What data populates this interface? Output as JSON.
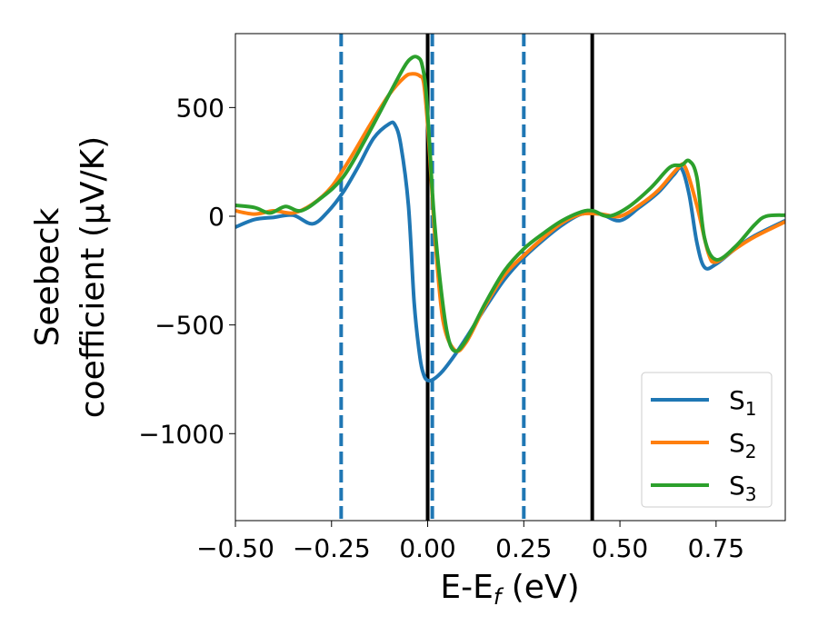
{
  "chart_data": {
    "type": "line",
    "xlabel": "E-E",
    "xlabel_sub": "f",
    "xlabel_unit": " (eV)",
    "ylabel_line1": "Seebeck",
    "ylabel_line2": "coefficient  (μV/K)",
    "xlim": [
      -0.5,
      0.93
    ],
    "ylim": [
      -1400,
      840
    ],
    "x_ticks": [
      -0.5,
      -0.25,
      0.0,
      0.25,
      0.5,
      0.75
    ],
    "x_tick_labels": [
      "−0.50",
      "−0.25",
      "0.00",
      "0.25",
      "0.50",
      "0.75"
    ],
    "y_ticks": [
      500,
      0,
      -500,
      -1000
    ],
    "y_tick_labels": [
      "500",
      "0",
      "−500",
      "−1000"
    ],
    "grid": false,
    "legend_position": "bottom-right",
    "vertical_lines": [
      {
        "x": -0.225,
        "style": "dashed",
        "color": "#1f77b4"
      },
      {
        "x": 0.012,
        "style": "dashed",
        "color": "#1f77b4"
      },
      {
        "x": 0.25,
        "style": "dashed",
        "color": "#1f77b4"
      },
      {
        "x": 0.0,
        "style": "solid",
        "color": "#000000"
      },
      {
        "x": 0.428,
        "style": "solid",
        "color": "#000000"
      }
    ],
    "series": [
      {
        "name": "S",
        "sub": "1",
        "color": "#1f77b4",
        "x": [
          -0.5,
          -0.45,
          -0.4,
          -0.35,
          -0.3,
          -0.26,
          -0.22,
          -0.18,
          -0.14,
          -0.1,
          -0.085,
          -0.07,
          -0.05,
          -0.035,
          -0.02,
          -0.01,
          0.0,
          0.015,
          0.04,
          0.07,
          0.1,
          0.15,
          0.2,
          0.25,
          0.3,
          0.35,
          0.4,
          0.45,
          0.5,
          0.55,
          0.6,
          0.64,
          0.66,
          0.68,
          0.7,
          0.72,
          0.75,
          0.8,
          0.85,
          0.93
        ],
        "y": [
          -50,
          -15,
          -5,
          5,
          -35,
          20,
          110,
          230,
          360,
          425,
          420,
          330,
          50,
          -400,
          -650,
          -730,
          -755,
          -750,
          -710,
          -640,
          -560,
          -420,
          -290,
          -190,
          -110,
          -40,
          10,
          10,
          -20,
          40,
          110,
          190,
          220,
          100,
          -120,
          -235,
          -220,
          -150,
          -90,
          -20
        ]
      },
      {
        "name": "S",
        "sub": "2",
        "color": "#ff7f0e",
        "x": [
          -0.5,
          -0.45,
          -0.4,
          -0.35,
          -0.3,
          -0.25,
          -0.2,
          -0.15,
          -0.1,
          -0.06,
          -0.04,
          -0.02,
          -0.01,
          0.0,
          0.01,
          0.02,
          0.04,
          0.07,
          0.1,
          0.15,
          0.2,
          0.25,
          0.3,
          0.35,
          0.4,
          0.45,
          0.5,
          0.55,
          0.6,
          0.65,
          0.67,
          0.7,
          0.73,
          0.75,
          0.8,
          0.85,
          0.93
        ],
        "y": [
          25,
          10,
          25,
          15,
          55,
          135,
          270,
          420,
          560,
          640,
          655,
          645,
          610,
          420,
          150,
          -120,
          -480,
          -615,
          -580,
          -410,
          -270,
          -180,
          -100,
          -30,
          10,
          10,
          0,
          50,
          120,
          220,
          225,
          50,
          -170,
          -210,
          -150,
          -95,
          -25
        ]
      },
      {
        "name": "S",
        "sub": "3",
        "color": "#2ca02c",
        "x": [
          -0.5,
          -0.45,
          -0.41,
          -0.37,
          -0.33,
          -0.28,
          -0.22,
          -0.16,
          -0.1,
          -0.06,
          -0.04,
          -0.025,
          -0.015,
          -0.005,
          0.005,
          0.015,
          0.03,
          0.05,
          0.07,
          0.1,
          0.15,
          0.2,
          0.25,
          0.3,
          0.35,
          0.4,
          0.43,
          0.47,
          0.52,
          0.58,
          0.63,
          0.66,
          0.68,
          0.7,
          0.72,
          0.75,
          0.8,
          0.85,
          0.88,
          0.93
        ],
        "y": [
          50,
          40,
          15,
          45,
          25,
          80,
          180,
          360,
          560,
          690,
          730,
          730,
          700,
          590,
          330,
          40,
          -260,
          -530,
          -620,
          -570,
          -400,
          -250,
          -150,
          -80,
          -20,
          20,
          25,
          0,
          40,
          130,
          225,
          235,
          255,
          180,
          -100,
          -200,
          -140,
          -40,
          0,
          5
        ]
      }
    ]
  }
}
